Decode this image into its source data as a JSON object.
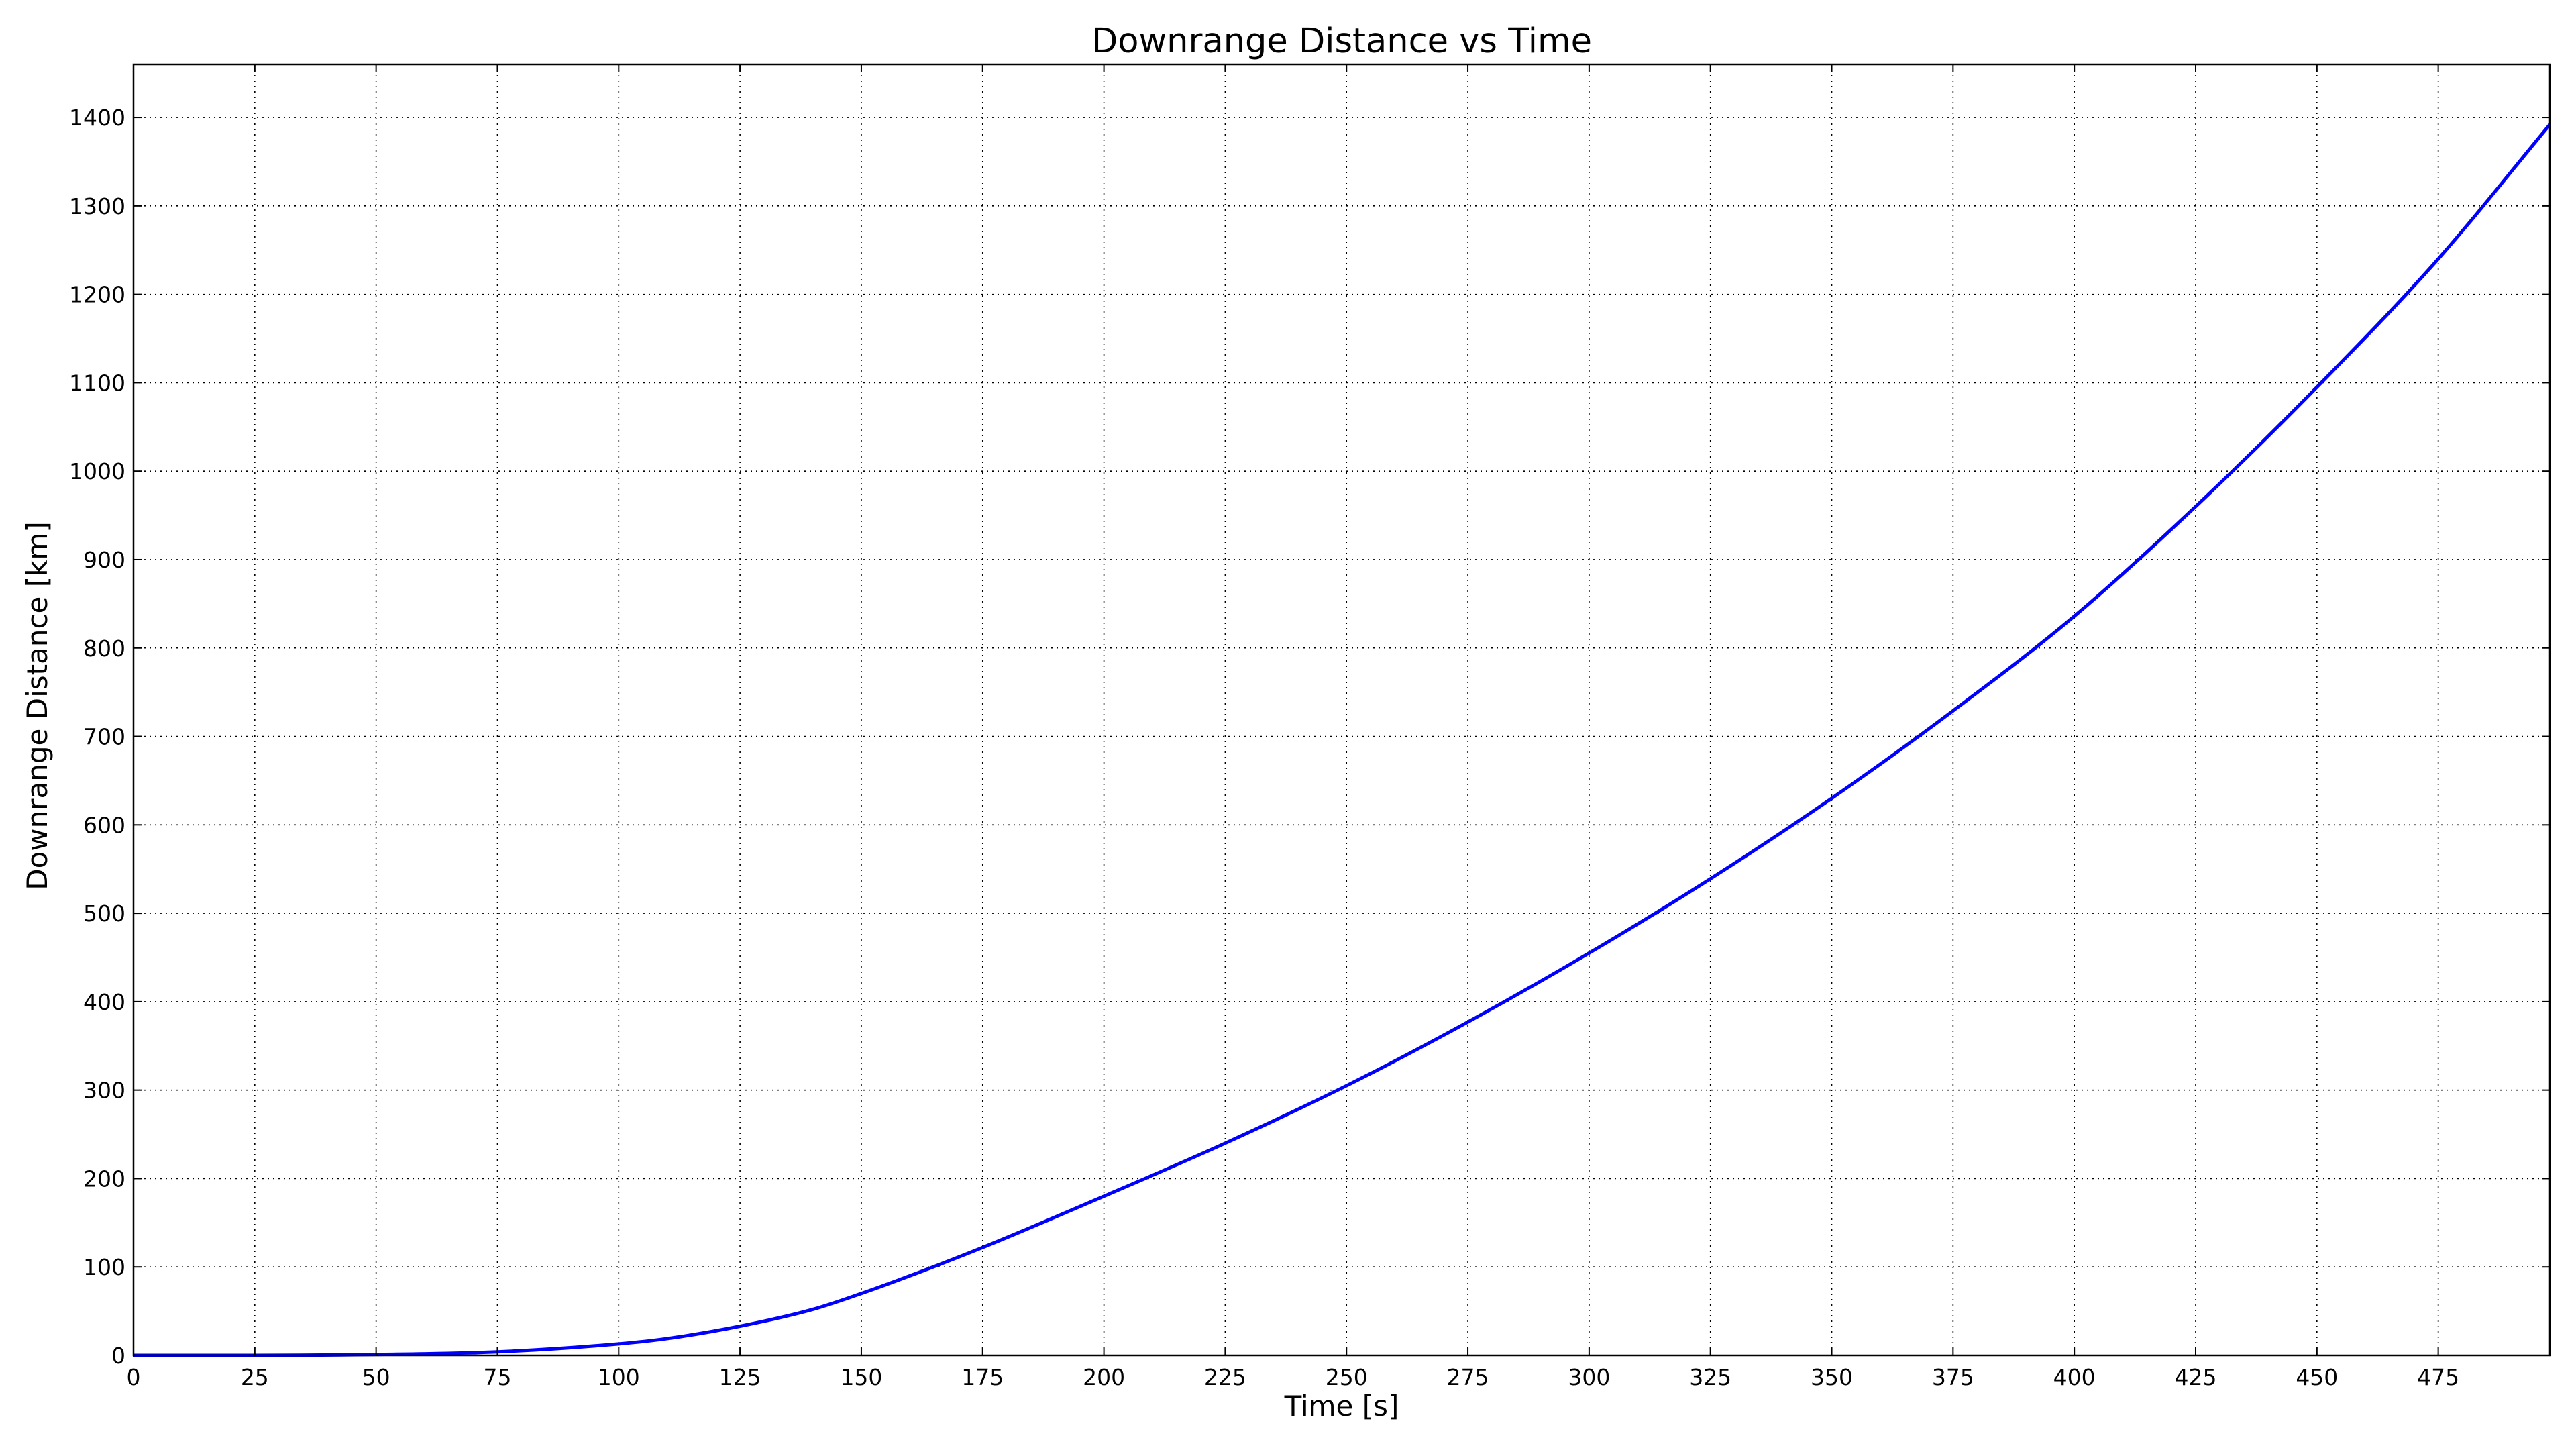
{
  "chart_data": {
    "type": "line",
    "title": "Downrange Distance vs Time",
    "xlabel": "Time [s]",
    "ylabel": "Downrange Distance [km]",
    "xlim": [
      0,
      498
    ],
    "ylim": [
      0,
      1460
    ],
    "grid": true,
    "legend": "none",
    "x_ticks": [
      0,
      25,
      50,
      75,
      100,
      125,
      150,
      175,
      200,
      225,
      250,
      275,
      300,
      325,
      350,
      375,
      400,
      425,
      450,
      475
    ],
    "y_ticks": [
      0,
      100,
      200,
      300,
      400,
      500,
      600,
      700,
      800,
      900,
      1000,
      1100,
      1200,
      1300,
      1400
    ],
    "series": [
      {
        "color": "#0000ff",
        "x": [
          0,
          25,
          50,
          75,
          100,
          110,
          125,
          140,
          150,
          160,
          175,
          200,
          225,
          250,
          275,
          300,
          325,
          350,
          375,
          400,
          425,
          450,
          475,
          498
        ],
        "y": [
          0,
          0,
          1,
          4,
          13,
          19,
          33,
          52,
          70,
          90,
          122,
          180,
          240,
          305,
          377,
          455,
          539,
          630,
          729,
          836,
          960,
          1095,
          1240,
          1392
        ]
      }
    ]
  }
}
